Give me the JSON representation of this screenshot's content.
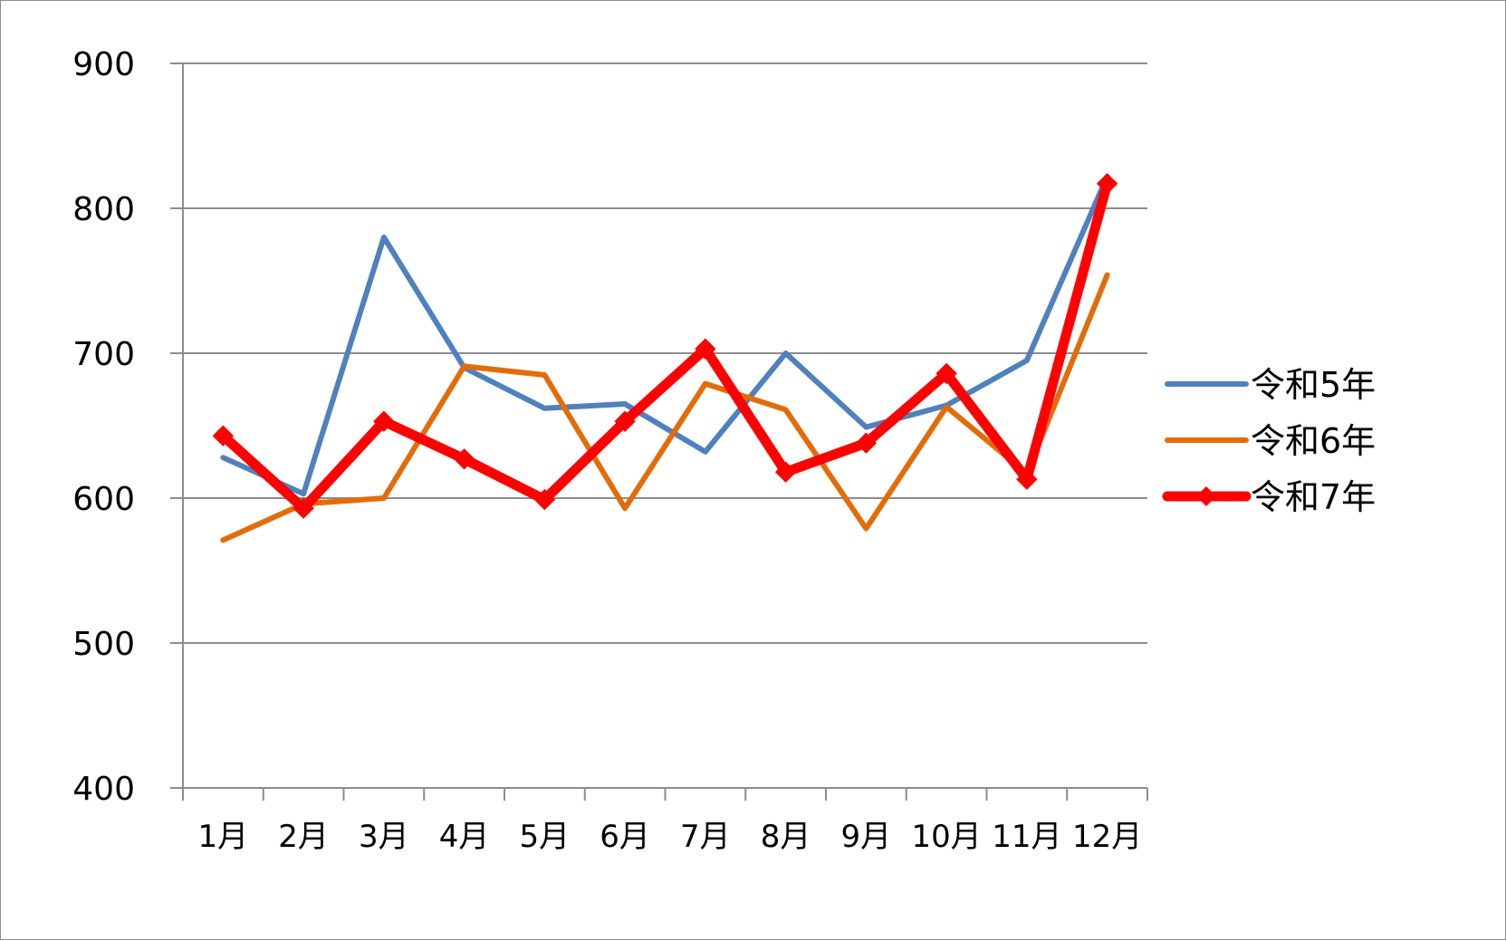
{
  "chart_data": {
    "type": "line",
    "categories": [
      "1月",
      "2月",
      "3月",
      "4月",
      "5月",
      "6月",
      "7月",
      "8月",
      "9月",
      "10月",
      "11月",
      "12月"
    ],
    "ylim": [
      400,
      900
    ],
    "yticks": [
      400,
      500,
      600,
      700,
      800,
      900
    ],
    "grid": true,
    "legend_position": "right",
    "series": [
      {
        "name": "令和5年",
        "color": "#4F81BD",
        "marker": "none",
        "values": [
          628,
          603,
          780,
          690,
          662,
          665,
          632,
          700,
          649,
          664,
          695,
          822
        ]
      },
      {
        "name": "令和6年",
        "color": "#E36C09",
        "marker": "none",
        "values": [
          571,
          596,
          600,
          691,
          685,
          593,
          679,
          661,
          579,
          663,
          617,
          754
        ]
      },
      {
        "name": "令和7年",
        "color": "#FF0000",
        "marker": "diamond",
        "values": [
          643,
          593,
          653,
          627,
          599,
          653,
          703,
          618,
          638,
          686,
          613,
          817
        ]
      }
    ]
  }
}
